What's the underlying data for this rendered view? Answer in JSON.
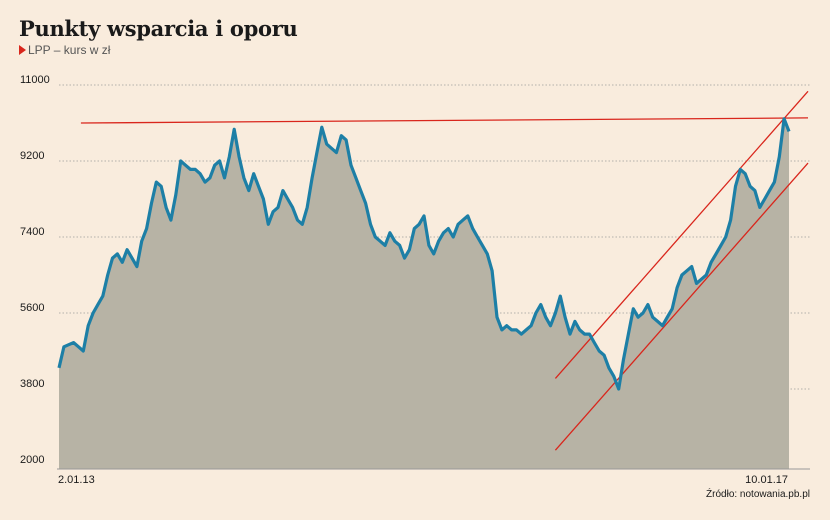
{
  "chart_data": {
    "type": "area",
    "title": "Punkty wsparcia i oporu",
    "legend": "LPP – kurs w zł",
    "source": "Źródło: notowania.pb.pl",
    "y_ticks": [
      "11000",
      "9200",
      "7400",
      "5600",
      "3800",
      "2000"
    ],
    "y_values": [
      11000,
      9200,
      7400,
      5600,
      3800,
      2000
    ],
    "ylim": [
      2000,
      11000
    ],
    "x_start_label": "2.01.13",
    "x_end_label": "10.01.17",
    "grid": true,
    "series": [
      {
        "values": [
          4300,
          4800,
          4850,
          4900,
          4800,
          4700,
          5300,
          5600,
          5800,
          6000,
          6500,
          6900,
          7000,
          6800,
          7100,
          6900,
          6700,
          7300,
          7600,
          8200,
          8700,
          8600,
          8100,
          7800,
          8400,
          9200,
          9100,
          9000,
          9000,
          8900,
          8700,
          8800,
          9100,
          9200,
          8800,
          9300,
          9950,
          9300,
          8800,
          8500,
          8900,
          8600,
          8300,
          7700,
          8000,
          8100,
          8500,
          8300,
          8100,
          7800,
          7700,
          8100,
          8800,
          9400,
          10000,
          9600,
          9500,
          9400,
          9800,
          9700,
          9100,
          8800,
          8500,
          8200,
          7700,
          7400,
          7300,
          7200,
          7500,
          7300,
          7200,
          6900,
          7100,
          7600,
          7700,
          7900,
          7200,
          7000,
          7300,
          7500,
          7600,
          7400,
          7700,
          7800,
          7900,
          7600,
          7400,
          7200,
          7000,
          6600,
          5500,
          5200,
          5300,
          5200,
          5200,
          5100,
          5200,
          5300,
          5600,
          5800,
          5500,
          5300,
          5600,
          6000,
          5500,
          5100,
          5400,
          5200,
          5100,
          5100,
          4900,
          4700,
          4600,
          4300,
          4100,
          3800,
          4500,
          5100,
          5700,
          5500,
          5600,
          5800,
          5500,
          5400,
          5300,
          5500,
          5700,
          6200,
          6500,
          6600,
          6700,
          6300,
          6400,
          6500,
          6800,
          7000,
          7200,
          7400,
          7800,
          8600,
          9000,
          8900,
          8600,
          8500,
          8100,
          8300,
          8500,
          8700,
          9300,
          10200,
          9900
        ]
      }
    ],
    "annotations": [
      {
        "type": "resistance",
        "x0": 0.03,
        "y0": 10100,
        "x1": 1.0,
        "y1": 10220
      },
      {
        "type": "channel-upper",
        "x0": 0.68,
        "y0": 4050,
        "x1": 1.0,
        "y1": 10850
      },
      {
        "type": "channel-lower",
        "x0": 0.68,
        "y0": 2350,
        "x1": 1.0,
        "y1": 9150
      }
    ]
  }
}
